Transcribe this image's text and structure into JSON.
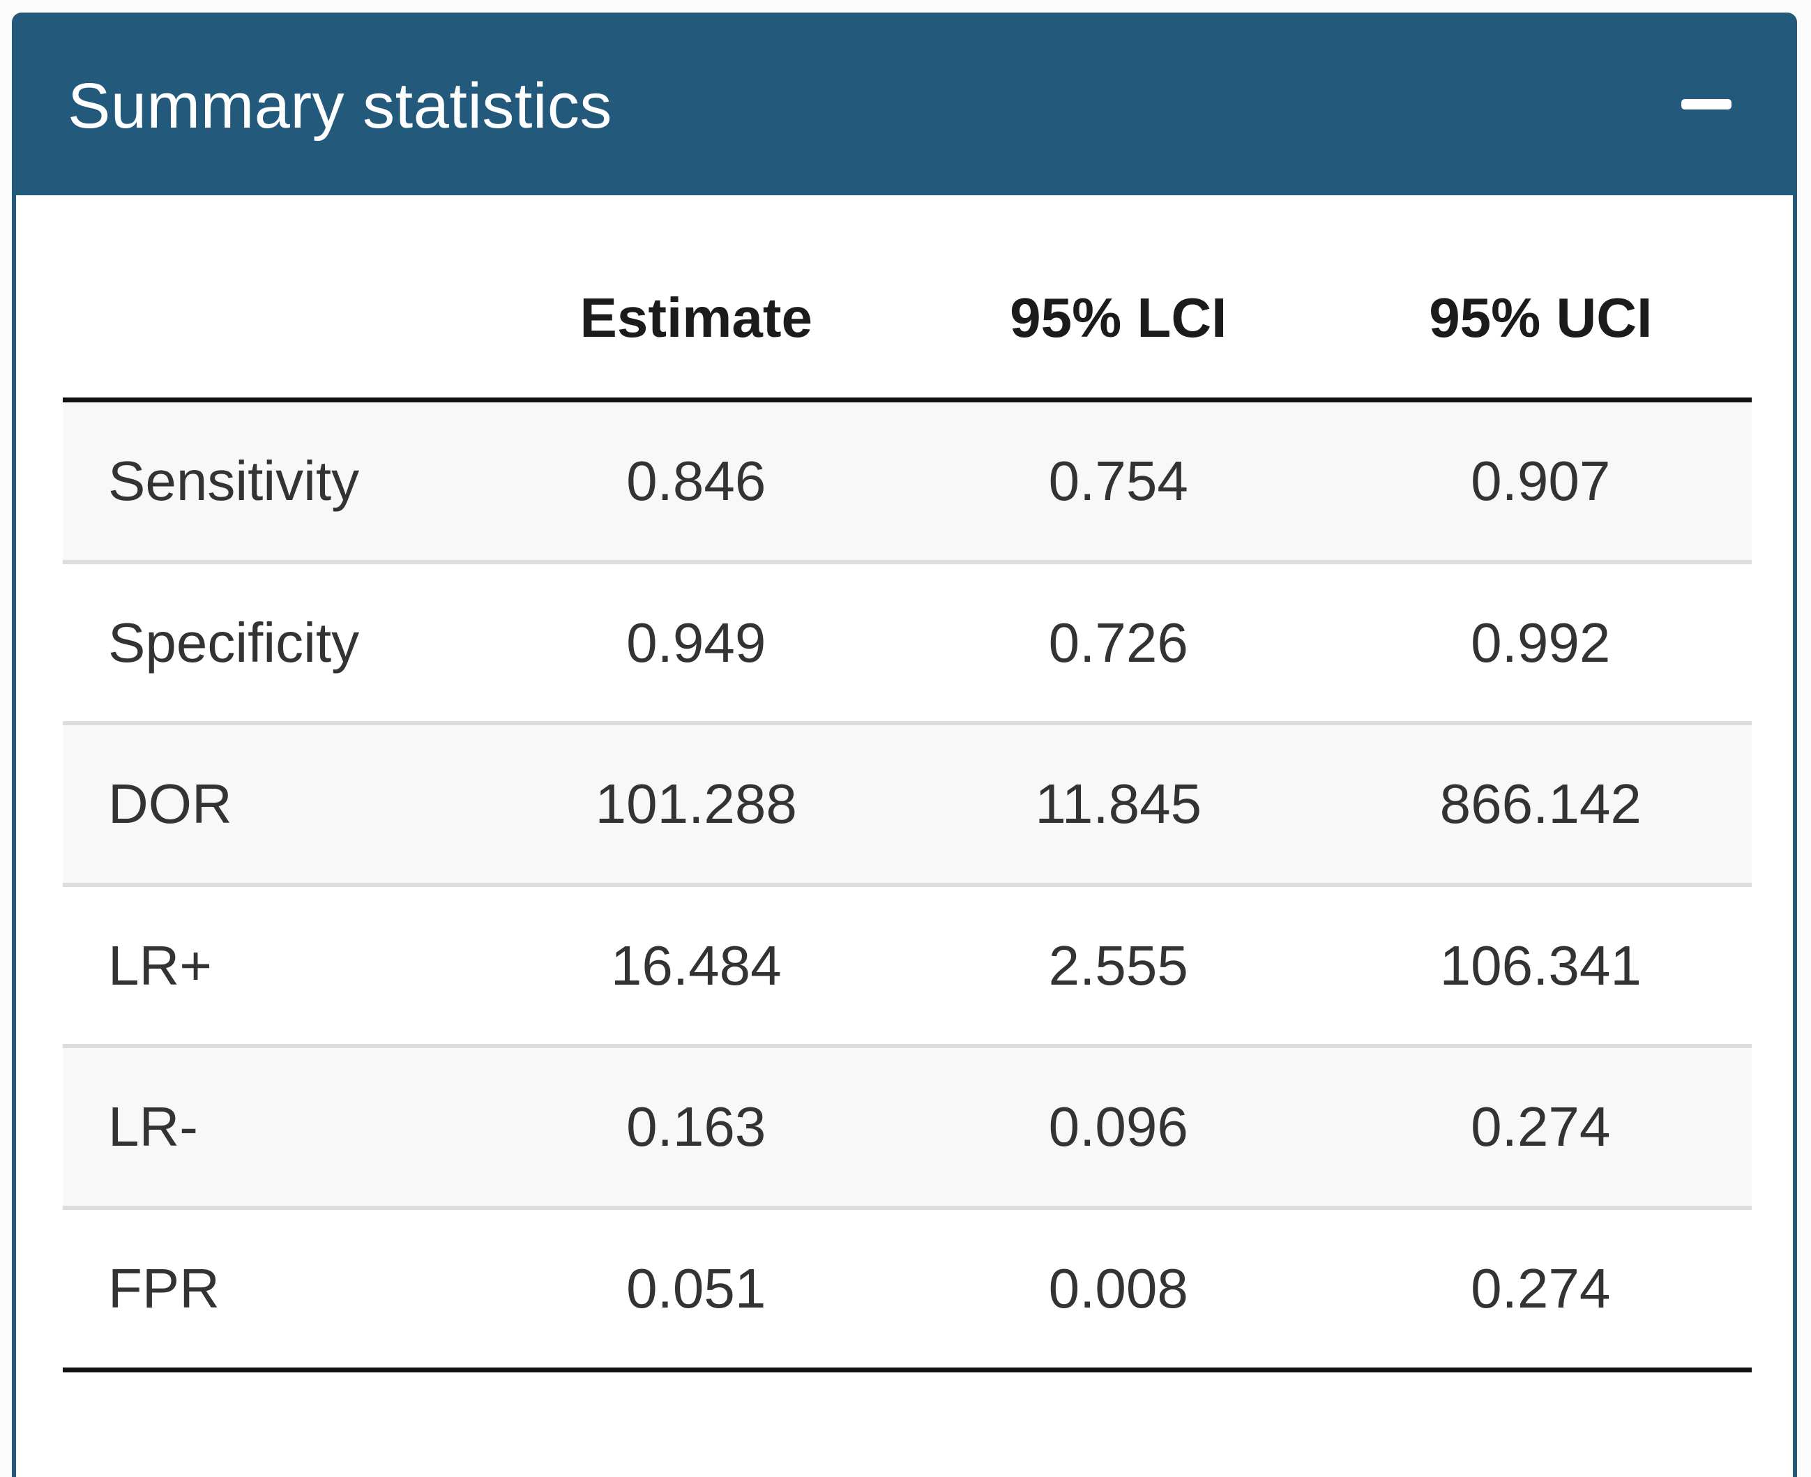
{
  "box": {
    "title": "Summary statistics",
    "header_bg_color": "#235a7c",
    "collapse_tool": "minus"
  },
  "table": {
    "columns": [
      "",
      "Estimate",
      "95% LCI",
      "95% UCI"
    ],
    "rows": [
      {
        "label": "Sensitivity",
        "estimate": "0.846",
        "lci": "0.754",
        "uci": "0.907"
      },
      {
        "label": "Specificity",
        "estimate": "0.949",
        "lci": "0.726",
        "uci": "0.992"
      },
      {
        "label": "DOR",
        "estimate": "101.288",
        "lci": "11.845",
        "uci": "866.142"
      },
      {
        "label": "LR+",
        "estimate": "16.484",
        "lci": "2.555",
        "uci": "106.341"
      },
      {
        "label": "LR-",
        "estimate": "0.163",
        "lci": "0.096",
        "uci": "0.274"
      },
      {
        "label": "FPR",
        "estimate": "0.051",
        "lci": "0.008",
        "uci": "0.274"
      }
    ],
    "stripe_color": "#f8f8f8",
    "heavy_border_color": "#111111"
  }
}
